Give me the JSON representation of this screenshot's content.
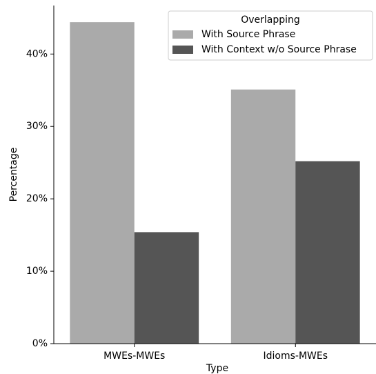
{
  "chart_data": {
    "type": "bar",
    "x_label": "Type",
    "y_label": "Percentage",
    "categories": [
      "MWEs-MWEs",
      "Idioms-MWEs"
    ],
    "series": [
      {
        "name": "With Source Phrase",
        "color": "#aaaaaa",
        "values": [
          44.4,
          35.1
        ]
      },
      {
        "name": "With Context w/o Source Phrase",
        "color": "#555555",
        "values": [
          15.4,
          25.2
        ]
      }
    ],
    "ylim": [
      0,
      46.7
    ],
    "yticks": [
      {
        "value": 0,
        "label": "0%"
      },
      {
        "value": 10,
        "label": "10%"
      },
      {
        "value": 20,
        "label": "20%"
      },
      {
        "value": 30,
        "label": "30%"
      },
      {
        "value": 40,
        "label": "40%"
      }
    ],
    "grid": false,
    "legend": {
      "title": "Overlapping",
      "position": "upper right"
    }
  }
}
